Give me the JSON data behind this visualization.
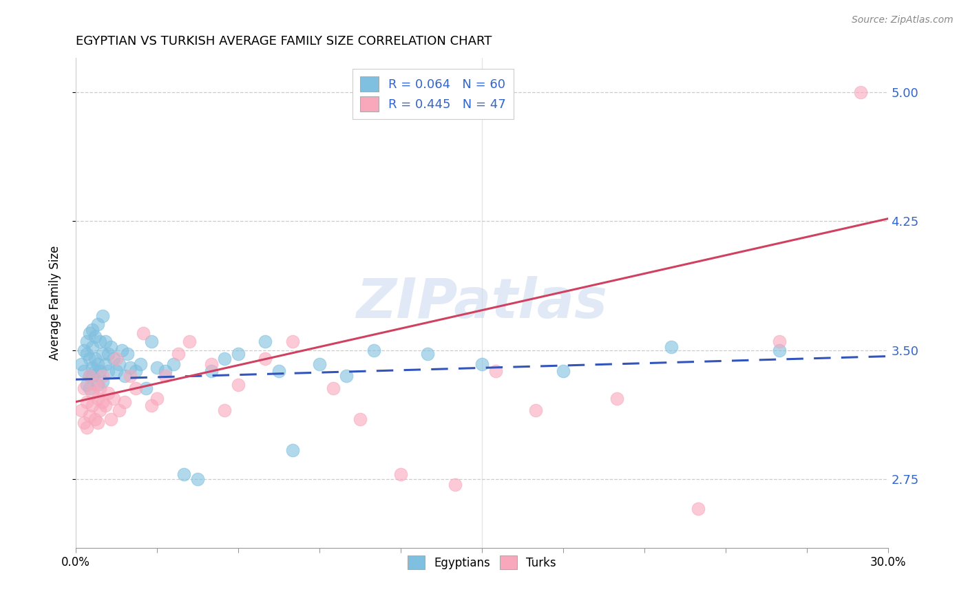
{
  "title": "EGYPTIAN VS TURKISH AVERAGE FAMILY SIZE CORRELATION CHART",
  "source": "Source: ZipAtlas.com",
  "ylabel": "Average Family Size",
  "ytick_labels": [
    "2.75",
    "3.50",
    "4.25",
    "5.00"
  ],
  "ytick_values": [
    2.75,
    3.5,
    4.25,
    5.0
  ],
  "xmin": 0.0,
  "xmax": 0.3,
  "ymin": 2.35,
  "ymax": 5.2,
  "watermark": "ZIPatlas",
  "legend_entry1": "R = 0.064   N = 60",
  "legend_entry2": "R = 0.445   N = 47",
  "legend_label1": "Egyptians",
  "legend_label2": "Turks",
  "blue_color": "#7fbfdf",
  "pink_color": "#f9a8bc",
  "line_blue": "#3355bb",
  "line_pink": "#d04060",
  "text_blue": "#3366cc",
  "egyptians_x": [
    0.002,
    0.003,
    0.003,
    0.004,
    0.004,
    0.004,
    0.005,
    0.005,
    0.005,
    0.005,
    0.006,
    0.006,
    0.006,
    0.006,
    0.007,
    0.007,
    0.007,
    0.008,
    0.008,
    0.008,
    0.009,
    0.009,
    0.01,
    0.01,
    0.01,
    0.011,
    0.011,
    0.012,
    0.012,
    0.013,
    0.014,
    0.015,
    0.016,
    0.017,
    0.018,
    0.019,
    0.02,
    0.022,
    0.024,
    0.026,
    0.028,
    0.03,
    0.033,
    0.036,
    0.04,
    0.045,
    0.05,
    0.055,
    0.06,
    0.07,
    0.075,
    0.08,
    0.09,
    0.1,
    0.11,
    0.13,
    0.15,
    0.18,
    0.22,
    0.26
  ],
  "egyptians_y": [
    3.42,
    3.38,
    3.5,
    3.3,
    3.48,
    3.55,
    3.35,
    3.45,
    3.6,
    3.28,
    3.52,
    3.4,
    3.62,
    3.35,
    3.58,
    3.45,
    3.38,
    3.65,
    3.42,
    3.3,
    3.55,
    3.38,
    3.7,
    3.48,
    3.32,
    3.55,
    3.42,
    3.48,
    3.38,
    3.52,
    3.45,
    3.38,
    3.42,
    3.5,
    3.35,
    3.48,
    3.4,
    3.38,
    3.42,
    3.28,
    3.55,
    3.4,
    3.38,
    3.42,
    2.78,
    2.75,
    3.38,
    3.45,
    3.48,
    3.55,
    3.38,
    2.92,
    3.42,
    3.35,
    3.5,
    3.48,
    3.42,
    3.38,
    3.52,
    3.5
  ],
  "turks_x": [
    0.002,
    0.003,
    0.003,
    0.004,
    0.004,
    0.005,
    0.005,
    0.006,
    0.006,
    0.007,
    0.007,
    0.008,
    0.008,
    0.009,
    0.009,
    0.01,
    0.01,
    0.011,
    0.012,
    0.013,
    0.014,
    0.015,
    0.016,
    0.018,
    0.02,
    0.022,
    0.025,
    0.028,
    0.03,
    0.033,
    0.038,
    0.042,
    0.05,
    0.055,
    0.06,
    0.07,
    0.08,
    0.095,
    0.105,
    0.12,
    0.14,
    0.155,
    0.17,
    0.2,
    0.23,
    0.26,
    0.29
  ],
  "turks_y": [
    3.15,
    3.28,
    3.08,
    3.2,
    3.05,
    3.35,
    3.12,
    3.18,
    3.25,
    3.1,
    3.3,
    3.22,
    3.08,
    3.15,
    3.28,
    3.2,
    3.35,
    3.18,
    3.25,
    3.1,
    3.22,
    3.45,
    3.15,
    3.2,
    3.35,
    3.28,
    3.6,
    3.18,
    3.22,
    3.35,
    3.48,
    3.55,
    3.42,
    3.15,
    3.3,
    3.45,
    3.55,
    3.28,
    3.1,
    2.78,
    2.72,
    3.38,
    3.15,
    3.22,
    2.58,
    3.55,
    5.0
  ]
}
